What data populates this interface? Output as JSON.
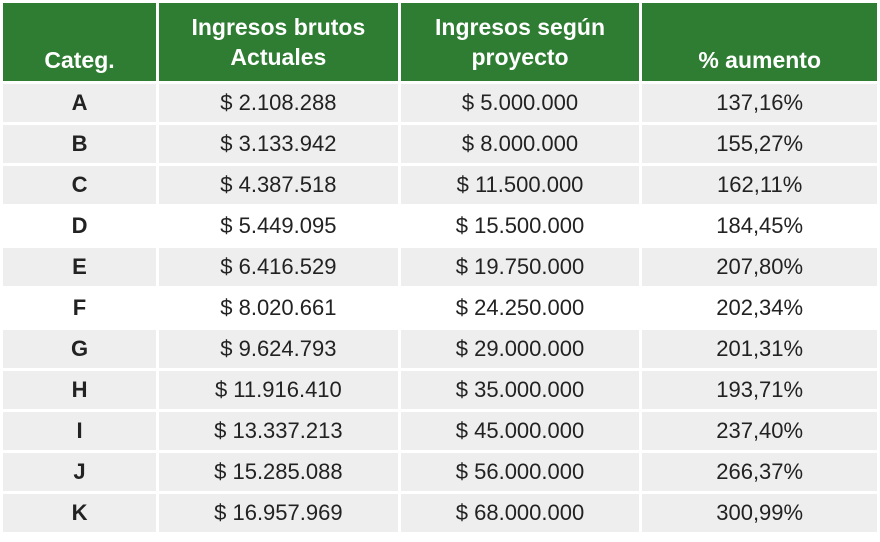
{
  "table": {
    "headers": {
      "categ": "Categ.",
      "actual_line1": "Ingresos brutos",
      "actual_line2": "Actuales",
      "project_line1": "Ingresos según",
      "project_line2": "proyecto",
      "increase": "% aumento"
    },
    "rows": [
      {
        "categ": "A",
        "actual": "$ 2.108.288",
        "project": "$ 5.000.000",
        "increase": "137,16%"
      },
      {
        "categ": "B",
        "actual": "$ 3.133.942",
        "project": "$ 8.000.000",
        "increase": "155,27%"
      },
      {
        "categ": "C",
        "actual": "$ 4.387.518",
        "project": "$ 11.500.000",
        "increase": "162,11%"
      },
      {
        "categ": "D",
        "actual": "$ 5.449.095",
        "project": "$ 15.500.000",
        "increase": "184,45%"
      },
      {
        "categ": "E",
        "actual": "$ 6.416.529",
        "project": "$ 19.750.000",
        "increase": "207,80%"
      },
      {
        "categ": "F",
        "actual": "$ 8.020.661",
        "project": "$ 24.250.000",
        "increase": "202,34%"
      },
      {
        "categ": "G",
        "actual": "$ 9.624.793",
        "project": "$ 29.000.000",
        "increase": "201,31%"
      },
      {
        "categ": "H",
        "actual": "$ 11.916.410",
        "project": "$ 35.000.000",
        "increase": "193,71%"
      },
      {
        "categ": "I",
        "actual": "$ 13.337.213",
        "project": "$ 45.000.000",
        "increase": "237,40%"
      },
      {
        "categ": "J",
        "actual": "$ 15.285.088",
        "project": "$ 56.000.000",
        "increase": "266,37%"
      },
      {
        "categ": "K",
        "actual": "$ 16.957.969",
        "project": "$ 68.000.000",
        "increase": "300,99%"
      }
    ]
  },
  "colors": {
    "header_bg": "#2e7d32",
    "header_text": "#ffffff",
    "row_bg": "#eeeeee",
    "row_alt_bg": "#ffffff"
  }
}
